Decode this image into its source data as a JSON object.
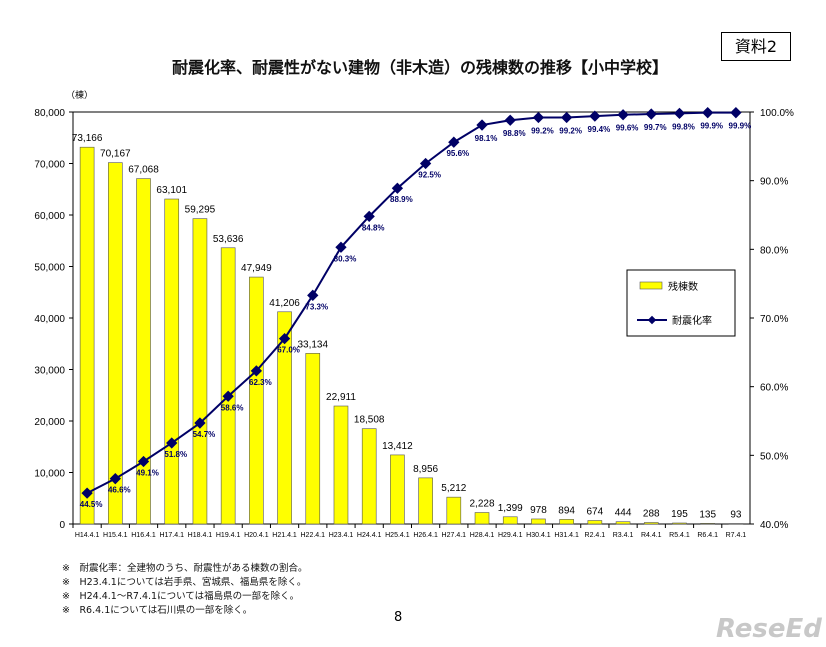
{
  "header": {
    "title": "耐震化率、耐震性がない建物（非木造）の残棟数の推移【小中学校】",
    "doc_label": "資料2"
  },
  "notes": [
    "※　耐震化率：全建物のうち、耐震性がある棟数の割合。",
    "※　H23.4.1については岩手県、宮城県、福島県を除く。",
    "※　H24.4.1～R7.4.1については福島県の一部を除く。",
    "※　R6.4.1については石川県の一部を除く。"
  ],
  "page_number": "8",
  "logo": "ReseEd",
  "chart_data": {
    "type": "bar+line",
    "title": "",
    "ylabel_left": "（棟）",
    "categories": [
      "H14.4.1",
      "H15.4.1",
      "H16.4.1",
      "H17.4.1",
      "H18.4.1",
      "H19.4.1",
      "H20.4.1",
      "H21.4.1",
      "H22.4.1",
      "H23.4.1",
      "H24.4.1",
      "H25.4.1",
      "H26.4.1",
      "H27.4.1",
      "H28.4.1",
      "H29.4.1",
      "H30.4.1",
      "H31.4.1",
      "R2.4.1",
      "R3.4.1",
      "R4.4.1",
      "R5.4.1",
      "R6.4.1",
      "R7.4.1"
    ],
    "series": [
      {
        "name": "残棟数",
        "type": "bar",
        "axis": "left",
        "color": "#ffff00",
        "values": [
          73166,
          70167,
          67068,
          63101,
          59295,
          53636,
          47949,
          41206,
          33134,
          22911,
          18508,
          13412,
          8956,
          5212,
          2228,
          1399,
          978,
          894,
          674,
          444,
          288,
          195,
          135,
          93
        ],
        "labels": [
          "73,166",
          "70,167",
          "67,068",
          "63,101",
          "59,295",
          "53,636",
          "47,949",
          "41,206",
          "33,134",
          "22,911",
          "18,508",
          "13,412",
          "8,956",
          "5,212",
          "2,228",
          "1,399",
          "978",
          "894",
          "674",
          "444",
          "288",
          "195",
          "135",
          "93"
        ]
      },
      {
        "name": "耐震化率",
        "type": "line",
        "axis": "right",
        "color": "#000066",
        "values": [
          44.5,
          46.6,
          49.1,
          51.8,
          54.7,
          58.6,
          62.3,
          67.0,
          73.3,
          80.3,
          84.8,
          88.9,
          92.5,
          95.6,
          98.1,
          98.8,
          99.2,
          99.2,
          99.4,
          99.6,
          99.7,
          99.8,
          99.9,
          99.9
        ],
        "labels": [
          "44.5%",
          "46.6%",
          "49.1%",
          "51.8%",
          "54.7%",
          "58.6%",
          "62.3%",
          "67.0%",
          "73.3%",
          "80.3%",
          "84.8%",
          "88.9%",
          "92.5%",
          "95.6%",
          "98.1%",
          "98.8%",
          "99.2%",
          "99.2%",
          "99.4%",
          "99.6%",
          "99.7%",
          "99.8%",
          "99.9%",
          "99.9%"
        ]
      }
    ],
    "ylim_left": [
      0,
      80000
    ],
    "yticks_left": [
      "0",
      "10,000",
      "20,000",
      "30,000",
      "40,000",
      "50,000",
      "60,000",
      "70,000",
      "80,000"
    ],
    "ylim_right": [
      40,
      100
    ],
    "yticks_right": [
      "40.0%",
      "50.0%",
      "60.0%",
      "70.0%",
      "80.0%",
      "90.0%",
      "100.0%"
    ],
    "grid": false,
    "legend": "right"
  }
}
